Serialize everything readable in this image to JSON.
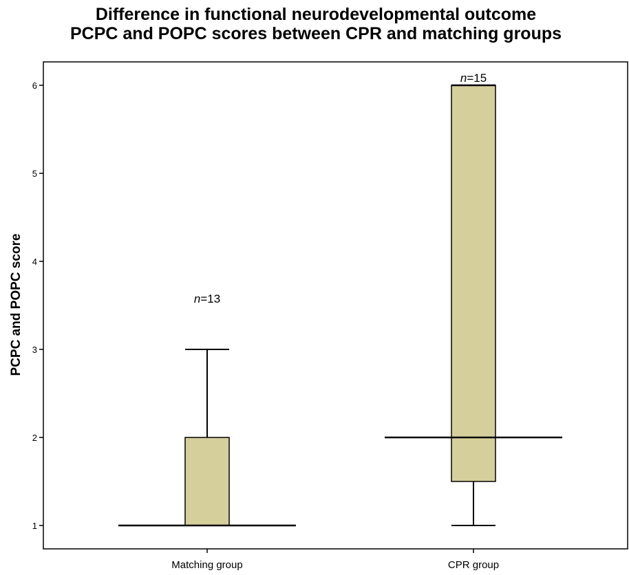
{
  "chart_data": {
    "type": "boxplot",
    "title": "Difference in functional neurodevelopmental outcome",
    "subtitle": "PCPC and POPC scores between CPR and matching groups",
    "xlabel": "",
    "ylabel": "PCPC and POPC score",
    "ylim": [
      0.75,
      6.3
    ],
    "yticks": [
      1,
      2,
      3,
      4,
      5,
      6
    ],
    "categories": [
      "Matching group",
      "CPR group"
    ],
    "n_prefix": "n",
    "n_labels": [
      "=13",
      "=15"
    ],
    "boxes": [
      {
        "whisker_low": 1,
        "q1": 1,
        "median": 1,
        "q3": 2,
        "whisker_high": 3
      },
      {
        "whisker_low": 1,
        "q1": 1.5,
        "median": 2,
        "q3": 6,
        "whisker_high": 6
      }
    ],
    "box_color": "#d5cf9c",
    "grid": false
  }
}
